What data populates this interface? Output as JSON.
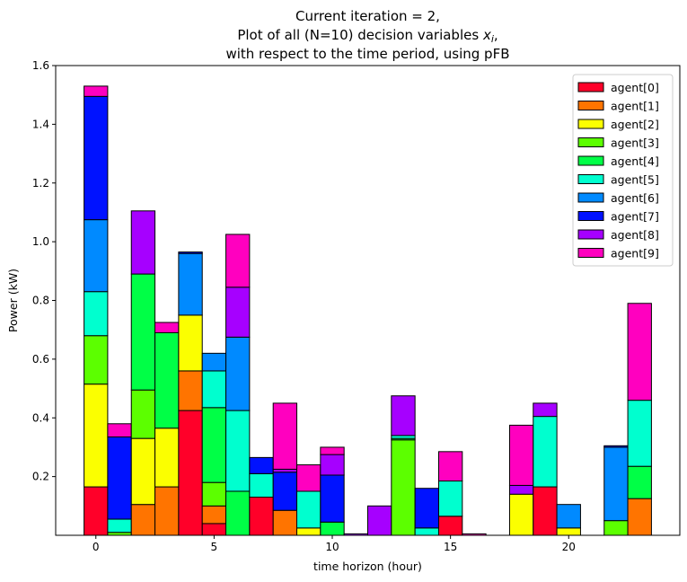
{
  "chart_data": {
    "type": "bar",
    "stacked": true,
    "title_lines": [
      "Current iteration = 2,",
      "Plot of all (N=10) decision variables x_i,",
      "with respect to the time period, using pFB"
    ],
    "xlabel": "time horizon (hour)",
    "ylabel": "Power (kW)",
    "xlim": [
      -1.7,
      24.7
    ],
    "ylim": [
      0,
      1.6
    ],
    "xticks": [
      0,
      5,
      10,
      15,
      20
    ],
    "xtick_labels": [
      "0",
      "5",
      "10",
      "15",
      "20"
    ],
    "yticks": [
      0.2,
      0.4,
      0.6,
      0.8,
      1.0,
      1.2,
      1.4,
      1.6
    ],
    "ytick_labels": [
      "0.2",
      "0.4",
      "0.6",
      "0.8",
      "1.0",
      "1.2",
      "1.4",
      "1.6"
    ],
    "grid": false,
    "legend_position": "top-right",
    "x": [
      0,
      1,
      2,
      3,
      4,
      5,
      6,
      7,
      8,
      9,
      10,
      11,
      12,
      13,
      14,
      15,
      16,
      17,
      18,
      19,
      20,
      21,
      22,
      23
    ],
    "series": [
      {
        "name": "agent[0]",
        "color": "#ff0029",
        "values": [
          0.165,
          0,
          0,
          0,
          0.425,
          0.04,
          0,
          0.13,
          0,
          0,
          0,
          0,
          0,
          0,
          0,
          0.065,
          0,
          0,
          0,
          0.165,
          0,
          0,
          0,
          0
        ]
      },
      {
        "name": "agent[1]",
        "color": "#ff7400",
        "values": [
          0,
          0,
          0.105,
          0.165,
          0.135,
          0.06,
          0,
          0,
          0.085,
          0,
          0,
          0,
          0,
          0,
          0,
          0,
          0,
          0,
          0,
          0,
          0,
          0,
          0,
          0.125
        ]
      },
      {
        "name": "agent[2]",
        "color": "#fbff00",
        "values": [
          0.35,
          0,
          0.225,
          0.2,
          0.19,
          0,
          0,
          0,
          0,
          0.025,
          0,
          0,
          0,
          0,
          0,
          0,
          0,
          0,
          0.14,
          0,
          0.025,
          0,
          0,
          0
        ]
      },
      {
        "name": "agent[3]",
        "color": "#5cff00",
        "values": [
          0.165,
          0.01,
          0.165,
          0,
          0,
          0.08,
          0,
          0,
          0,
          0,
          0,
          0,
          0,
          0.325,
          0,
          0,
          0,
          0,
          0,
          0,
          0,
          0,
          0.05,
          0
        ]
      },
      {
        "name": "agent[4]",
        "color": "#00ff46",
        "values": [
          0,
          0,
          0.395,
          0.325,
          0,
          0.255,
          0.15,
          0,
          0,
          0,
          0.045,
          0,
          0,
          0.005,
          0,
          0,
          0,
          0,
          0,
          0,
          0,
          0,
          0,
          0.11
        ]
      },
      {
        "name": "agent[5]",
        "color": "#00ffcf",
        "values": [
          0.15,
          0.045,
          0,
          0,
          0,
          0.125,
          0.275,
          0.08,
          0,
          0.125,
          0,
          0,
          0,
          0.01,
          0.025,
          0.12,
          0,
          0,
          0,
          0.24,
          0,
          0,
          0,
          0.225
        ]
      },
      {
        "name": "agent[6]",
        "color": "#008aff",
        "values": [
          0.245,
          0,
          0,
          0,
          0.21,
          0.06,
          0.25,
          0,
          0,
          0,
          0,
          0,
          0,
          0,
          0,
          0,
          0,
          0,
          0,
          0,
          0.08,
          0,
          0.25,
          0
        ]
      },
      {
        "name": "agent[7]",
        "color": "#0012ff",
        "values": [
          0.42,
          0.28,
          0,
          0,
          0.005,
          0,
          0,
          0.055,
          0.13,
          0,
          0.16,
          0,
          0,
          0,
          0.135,
          0,
          0,
          0,
          0,
          0,
          0,
          0,
          0.005,
          0
        ]
      },
      {
        "name": "agent[8]",
        "color": "#a600ff",
        "values": [
          0,
          0,
          0.215,
          0,
          0,
          0,
          0.17,
          0,
          0.01,
          0,
          0.07,
          0.005,
          0.1,
          0.135,
          0,
          0,
          0,
          0,
          0.03,
          0.045,
          0,
          0,
          0,
          0
        ]
      },
      {
        "name": "agent[9]",
        "color": "#ff00bf",
        "values": [
          0.035,
          0.045,
          0,
          0.035,
          0,
          0,
          0.18,
          0,
          0.225,
          0.09,
          0.025,
          0,
          0,
          0,
          0,
          0.1,
          0.005,
          0,
          0.205,
          0,
          0,
          0,
          0,
          0.33
        ]
      }
    ]
  }
}
